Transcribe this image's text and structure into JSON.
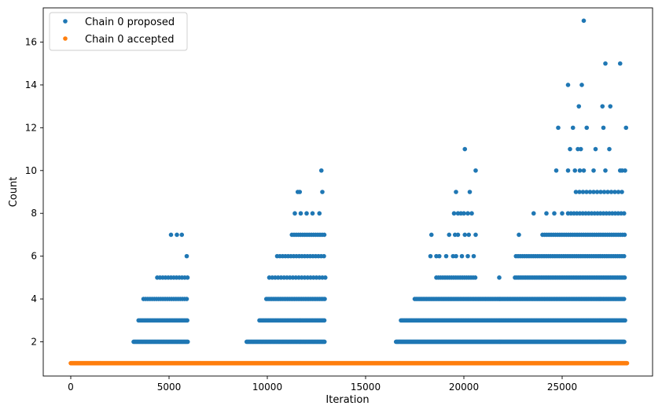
{
  "chart_data": {
    "type": "scatter",
    "title": "",
    "xlabel": "Iteration",
    "ylabel": "Count",
    "xlim": [
      -1400,
      29600
    ],
    "ylim": [
      0.4,
      17.6
    ],
    "x_ticks": [
      0,
      5000,
      10000,
      15000,
      20000,
      25000
    ],
    "x_tick_labels": [
      "0",
      "5000",
      "10000",
      "15000",
      "20000",
      "25000"
    ],
    "y_ticks": [
      2,
      4,
      6,
      8,
      10,
      12,
      14,
      16
    ],
    "y_tick_labels": [
      "2",
      "4",
      "6",
      "8",
      "10",
      "12",
      "14",
      "16"
    ],
    "grid": false,
    "legend": {
      "position": "top-left"
    },
    "series": [
      {
        "name": "Chain 0 proposed",
        "color": "#1f77b4",
        "marker": "circle",
        "bands": [
          {
            "y": 2,
            "start": 3200,
            "end": 5950,
            "step": 55
          },
          {
            "y": 3,
            "start": 3450,
            "end": 5950,
            "step": 75
          },
          {
            "y": 4,
            "start": 3700,
            "end": 5950,
            "step": 110
          },
          {
            "y": 5,
            "start": 4400,
            "end": 5950,
            "step": 140
          },
          {
            "y": 2,
            "start": 8950,
            "end": 12950,
            "step": 55
          },
          {
            "y": 3,
            "start": 9600,
            "end": 12950,
            "step": 75
          },
          {
            "y": 4,
            "start": 9950,
            "end": 12950,
            "step": 90
          },
          {
            "y": 5,
            "start": 10100,
            "end": 12950,
            "step": 150
          },
          {
            "y": 6,
            "start": 10500,
            "end": 12950,
            "step": 140
          },
          {
            "y": 7,
            "start": 11250,
            "end": 12950,
            "step": 110
          },
          {
            "y": 2,
            "start": 16550,
            "end": 28200,
            "step": 45
          },
          {
            "y": 3,
            "start": 16800,
            "end": 28200,
            "step": 60
          },
          {
            "y": 4,
            "start": 17500,
            "end": 28200,
            "step": 75
          },
          {
            "y": 5,
            "start": 18600,
            "end": 20650,
            "step": 110
          },
          {
            "y": 5,
            "start": 22600,
            "end": 28200,
            "step": 90
          },
          {
            "y": 6,
            "start": 22650,
            "end": 28200,
            "step": 110
          },
          {
            "y": 7,
            "start": 24000,
            "end": 28200,
            "step": 110
          },
          {
            "y": 8,
            "start": 25300,
            "end": 28200,
            "step": 150
          },
          {
            "y": 9,
            "start": 25700,
            "end": 28200,
            "step": 180
          }
        ],
        "points": [
          [
            5100,
            7
          ],
          [
            5400,
            7
          ],
          [
            5650,
            7
          ],
          [
            5900,
            6
          ],
          [
            11650,
            9
          ],
          [
            11550,
            9
          ],
          [
            12750,
            10
          ],
          [
            12800,
            9
          ],
          [
            11400,
            8
          ],
          [
            11700,
            8
          ],
          [
            12000,
            8
          ],
          [
            12300,
            8
          ],
          [
            12650,
            8
          ],
          [
            18300,
            6
          ],
          [
            18600,
            6
          ],
          [
            18750,
            6
          ],
          [
            19100,
            6
          ],
          [
            19450,
            6
          ],
          [
            19600,
            6
          ],
          [
            19900,
            6
          ],
          [
            20200,
            6
          ],
          [
            20500,
            6
          ],
          [
            18350,
            7
          ],
          [
            19250,
            7
          ],
          [
            19550,
            7
          ],
          [
            19700,
            7
          ],
          [
            20050,
            7
          ],
          [
            20250,
            7
          ],
          [
            20600,
            7
          ],
          [
            19500,
            8
          ],
          [
            19700,
            8
          ],
          [
            19850,
            8
          ],
          [
            20000,
            8
          ],
          [
            20200,
            8
          ],
          [
            20400,
            8
          ],
          [
            19600,
            9
          ],
          [
            20300,
            9
          ],
          [
            20050,
            11
          ],
          [
            20600,
            10
          ],
          [
            21800,
            5
          ],
          [
            22800,
            7
          ],
          [
            23550,
            8
          ],
          [
            24200,
            8
          ],
          [
            24600,
            8
          ],
          [
            25000,
            8
          ],
          [
            24700,
            10
          ],
          [
            25300,
            10
          ],
          [
            25650,
            10
          ],
          [
            25900,
            10
          ],
          [
            26100,
            10
          ],
          [
            26600,
            10
          ],
          [
            27200,
            10
          ],
          [
            27950,
            10
          ],
          [
            28050,
            10
          ],
          [
            28200,
            10
          ],
          [
            25400,
            11
          ],
          [
            25800,
            11
          ],
          [
            25950,
            11
          ],
          [
            26700,
            11
          ],
          [
            27400,
            11
          ],
          [
            24800,
            12
          ],
          [
            25550,
            12
          ],
          [
            26250,
            12
          ],
          [
            27100,
            12
          ],
          [
            28250,
            12
          ],
          [
            25850,
            13
          ],
          [
            27050,
            13
          ],
          [
            27450,
            13
          ],
          [
            25300,
            14
          ],
          [
            26000,
            14
          ],
          [
            27200,
            15
          ],
          [
            27950,
            15
          ],
          [
            26100,
            17
          ]
        ]
      },
      {
        "name": "Chain 0 accepted",
        "color": "#ff7f0e",
        "marker": "circle",
        "bands": [
          {
            "y": 1,
            "start": 0,
            "end": 28300,
            "step": 20
          }
        ],
        "points": []
      }
    ]
  }
}
